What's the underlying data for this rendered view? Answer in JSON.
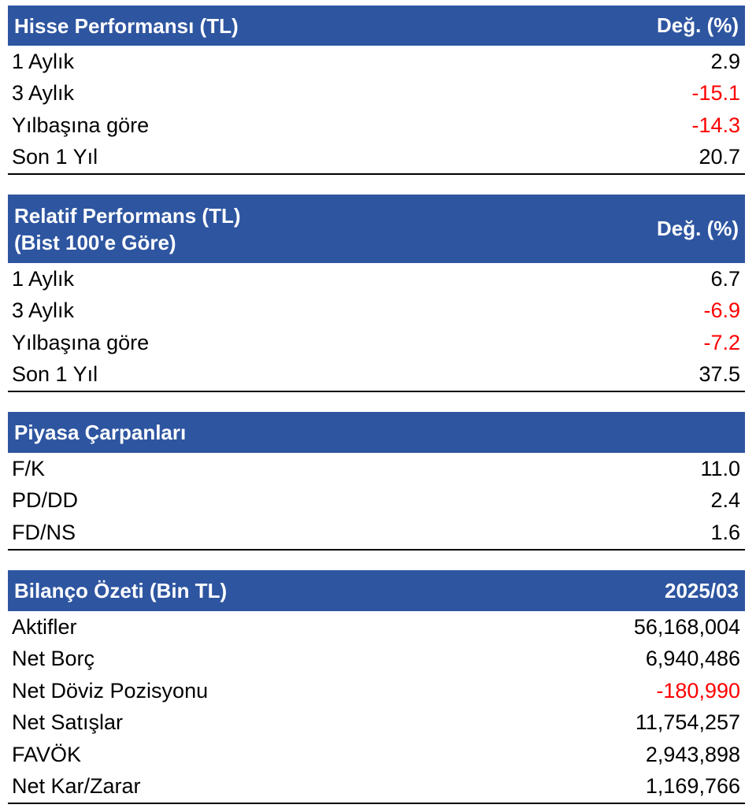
{
  "hisse_performansi": {
    "title": "Hisse Performansı (TL)",
    "value_header": "Değ. (%)",
    "rows": [
      {
        "label": "1 Aylık",
        "value": "2.9",
        "negative": false
      },
      {
        "label": "3 Aylık",
        "value": "-15.1",
        "negative": true
      },
      {
        "label": "Yılbaşına göre",
        "value": "-14.3",
        "negative": true
      },
      {
        "label": "Son 1 Yıl",
        "value": "20.7",
        "negative": false
      }
    ]
  },
  "relatif_performans": {
    "title_line1": "Relatif Performans (TL)",
    "title_line2": "(Bist 100'e Göre)",
    "value_header": "Değ. (%)",
    "rows": [
      {
        "label": "1 Aylık",
        "value": "6.7",
        "negative": false
      },
      {
        "label": "3 Aylık",
        "value": "-6.9",
        "negative": true
      },
      {
        "label": "Yılbaşına göre",
        "value": "-7.2",
        "negative": true
      },
      {
        "label": "Son 1 Yıl",
        "value": "37.5",
        "negative": false
      }
    ]
  },
  "piyasa_carpanlari": {
    "title": "Piyasa Çarpanları",
    "rows": [
      {
        "label": "F/K",
        "value": "11.0",
        "negative": false
      },
      {
        "label": "PD/DD",
        "value": "2.4",
        "negative": false
      },
      {
        "label": "FD/NS",
        "value": "1.6",
        "negative": false
      }
    ]
  },
  "bilanco_ozeti": {
    "title": "Bilanço Özeti (Bin TL)",
    "value_header": "2025/03",
    "rows": [
      {
        "label": "Aktifler",
        "value": "56,168,004",
        "negative": false
      },
      {
        "label": "Net Borç",
        "value": "6,940,486",
        "negative": false
      },
      {
        "label": "Net Döviz Pozisyonu",
        "value": "-180,990",
        "negative": true
      },
      {
        "label": "Net Satışlar",
        "value": "11,754,257",
        "negative": false
      },
      {
        "label": "FAVÖK",
        "value": "2,943,898",
        "negative": false
      },
      {
        "label": "Net Kar/Zarar",
        "value": "1,169,766",
        "negative": false
      }
    ]
  },
  "colors": {
    "header_bg": "#2e55a0",
    "negative": "#ff0000"
  }
}
